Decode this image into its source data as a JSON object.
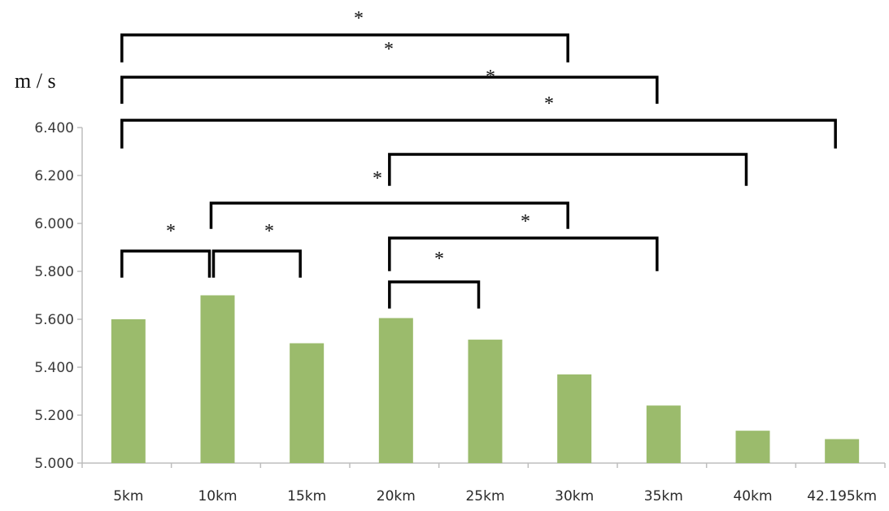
{
  "chart_data": {
    "type": "bar",
    "ylabel": "m / s",
    "categories": [
      "5km",
      "10km",
      "15km",
      "20km",
      "25km",
      "30km",
      "35km",
      "40km",
      "42.195km"
    ],
    "values": [
      5.6,
      5.7,
      5.5,
      5.605,
      5.515,
      5.37,
      5.24,
      5.135,
      5.1
    ],
    "ylim": [
      5.0,
      6.4
    ],
    "y_ticks": [
      "5.000",
      "5.200",
      "5.400",
      "5.600",
      "5.800",
      "6.000",
      "6.200",
      "6.400"
    ],
    "grid": false,
    "legend": "none",
    "bar_color": "#9bbb6c",
    "significance": [
      {
        "from": "5km",
        "to": "10km",
        "marker": "*"
      },
      {
        "from": "10km",
        "to": "15km",
        "marker": "*"
      },
      {
        "from": "20km",
        "to": "25km",
        "marker": "*"
      },
      {
        "from": "20km",
        "to": "35km",
        "marker": "*"
      },
      {
        "from": "10km",
        "to": "30km",
        "marker": "*"
      },
      {
        "from": "20km",
        "to": "40km",
        "marker": "*"
      },
      {
        "from": "5km",
        "to": "42.195km",
        "marker": "*"
      },
      {
        "from": "5km",
        "to": "35km",
        "marker": "*"
      },
      {
        "from": "5km",
        "to": "30km",
        "marker": "*"
      }
    ]
  }
}
